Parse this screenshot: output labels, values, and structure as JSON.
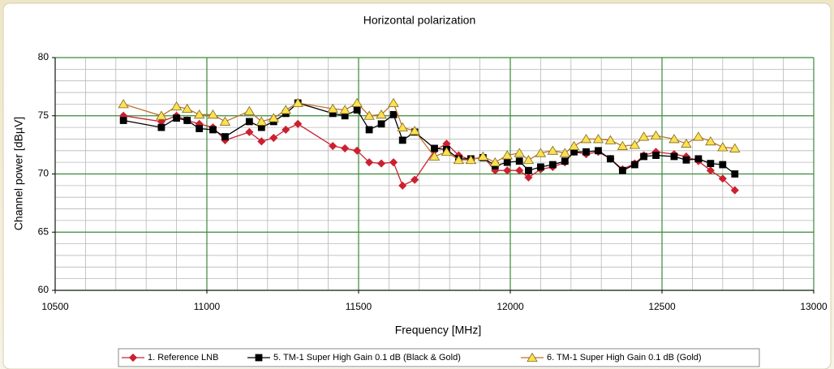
{
  "chart_data": {
    "type": "line",
    "title": "Horizontal polarization",
    "xlabel": "Frequency [MHz]",
    "ylabel": "Channel power [dBµV]",
    "x": [
      10725,
      10850,
      10900,
      10935,
      10975,
      11020,
      11060,
      11140,
      11180,
      11220,
      11260,
      11300,
      11415,
      11455,
      11495,
      11535,
      11575,
      11615,
      11645,
      11685,
      11750,
      11790,
      11830,
      11870,
      11910,
      11950,
      11990,
      12030,
      12060,
      12100,
      12140,
      12180,
      12210,
      12250,
      12290,
      12330,
      12370,
      12410,
      12440,
      12480,
      12540,
      12580,
      12620,
      12660,
      12700,
      12740
    ],
    "series": [
      {
        "name": "1. Reference LNB",
        "color": "#cc2030",
        "marker": "diamond",
        "marker_fill": "#cc2030",
        "values": [
          75.0,
          74.5,
          75.0,
          74.6,
          74.3,
          74.0,
          72.9,
          73.6,
          72.8,
          73.1,
          73.8,
          74.3,
          72.4,
          72.2,
          72.0,
          71.0,
          70.9,
          71.0,
          69.0,
          69.5,
          72.0,
          72.6,
          71.6,
          71.2,
          71.5,
          70.3,
          70.3,
          70.3,
          69.7,
          70.4,
          70.6,
          71.0,
          71.9,
          71.7,
          71.9,
          71.3,
          70.4,
          70.9,
          71.6,
          71.9,
          71.7,
          71.5,
          71.1,
          70.3,
          69.6,
          68.6
        ]
      },
      {
        "name": "5. TM-1 Super High Gain 0.1 dB (Black & Gold)",
        "color": "#000000",
        "marker": "square",
        "marker_fill": "#000000",
        "values": [
          74.6,
          74.0,
          74.8,
          74.6,
          73.9,
          73.8,
          73.2,
          74.5,
          74.0,
          74.5,
          75.2,
          76.1,
          75.2,
          75.0,
          75.5,
          73.8,
          74.3,
          75.1,
          72.9,
          73.6,
          72.2,
          72.1,
          71.3,
          71.3,
          71.4,
          70.7,
          71.0,
          71.1,
          70.3,
          70.6,
          70.8,
          71.1,
          71.9,
          71.9,
          72.0,
          71.3,
          70.3,
          70.8,
          71.5,
          71.6,
          71.5,
          71.2,
          71.3,
          70.9,
          70.8,
          70.0
        ]
      },
      {
        "name": "6. TM-1 Super High Gain 0.1 dB (Gold)",
        "color": "#c0702a",
        "marker": "triangle",
        "marker_fill": "#ffe050",
        "values": [
          76.0,
          75.0,
          75.8,
          75.6,
          75.1,
          75.1,
          74.5,
          75.4,
          74.5,
          74.8,
          75.5,
          76.1,
          75.6,
          75.5,
          76.1,
          75.0,
          75.1,
          76.1,
          74.0,
          73.7,
          71.5,
          71.9,
          71.2,
          71.2,
          71.5,
          71.0,
          71.6,
          71.8,
          71.2,
          71.8,
          72.0,
          71.8,
          72.4,
          73.0,
          73.0,
          72.9,
          72.4,
          72.5,
          73.2,
          73.3,
          73.0,
          72.6,
          73.2,
          72.8,
          72.3,
          72.2
        ]
      }
    ],
    "xlim": [
      10500,
      13000
    ],
    "xticks": [
      10500,
      11000,
      11500,
      12000,
      12500,
      13000
    ],
    "ylim": [
      60,
      80
    ],
    "yticks": [
      60,
      65,
      70,
      75,
      80
    ],
    "grid": true,
    "legend": "bottom"
  }
}
